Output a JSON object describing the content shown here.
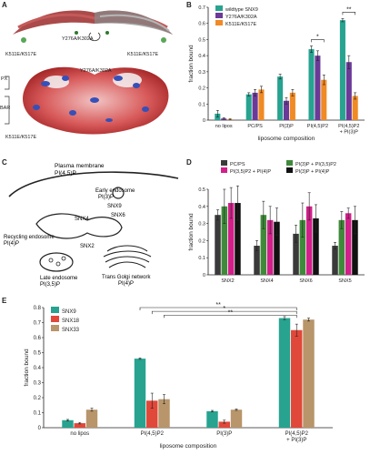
{
  "panel_labels": [
    "A",
    "B",
    "C",
    "D",
    "E"
  ],
  "panel_a": {
    "labels": {
      "y276a": "Y276A/K302A",
      "k511_left": "K511E/K517E",
      "k511_right": "K511E/K517E",
      "y276a_b": "Y276A/K302A",
      "px": "PX",
      "bar": "BAR",
      "k511_b": "K511E/K517E"
    }
  },
  "panel_c": {
    "labels": {
      "pm1": "Plasma membrane",
      "pm2": "PI(4,5)P",
      "ee1": "Early endosome",
      "ee2": "PI(3)P",
      "snx9": "SNX9",
      "snx4": "SNX4",
      "snx6": "SNX6",
      "re1": "Recycling endosome",
      "re2": "PI(4)P",
      "snx2": "SNX2",
      "le1": "Late endosome",
      "le2": "PI(3,5)P",
      "tgn1": "Trans Golgi network",
      "tgn2": "PI(4)P"
    }
  },
  "chart_data": [
    {
      "panel": "B",
      "type": "bar",
      "ylabel": "fraction bound",
      "xlabel": "liposome composition",
      "ylim": [
        0,
        0.7
      ],
      "yticks": [
        "0",
        "0.1",
        "0.2",
        "0.3",
        "0.4",
        "0.5",
        "0.6",
        "0.7"
      ],
      "categories": [
        "no lipos",
        "PC/PS",
        "PI(3)P",
        "PI(4,5)P2",
        "PI(4,5)P2 + PI(3)P"
      ],
      "series": [
        {
          "name": "wildtype SNX9",
          "color": "#27a390",
          "values": [
            0.04,
            0.16,
            0.27,
            0.44,
            0.62
          ],
          "err": [
            0.02,
            0.01,
            0.015,
            0.02,
            0.01
          ]
        },
        {
          "name": "Y276A/K302A",
          "color": "#6b3a98",
          "values": [
            0.01,
            0.17,
            0.12,
            0.4,
            0.36
          ],
          "err": [
            0.005,
            0.02,
            0.02,
            0.03,
            0.04
          ]
        },
        {
          "name": "K511E/K517E",
          "color": "#f08a24",
          "values": [
            0.005,
            0.19,
            0.17,
            0.25,
            0.15
          ],
          "err": [
            0.003,
            0.02,
            0.02,
            0.03,
            0.02
          ]
        }
      ],
      "annotations": [
        "*",
        "**"
      ],
      "legend": "top-left"
    },
    {
      "panel": "D",
      "type": "bar",
      "ylabel": "fraction bound",
      "ylim": [
        0,
        0.5
      ],
      "yticks": [
        "0",
        "0.1",
        "0.2",
        "0.3",
        "0.4",
        "0.5"
      ],
      "categories": [
        "SNX2",
        "SNX4",
        "SNX6",
        "SNX5"
      ],
      "series": [
        {
          "name": "PC/PS",
          "color": "#3a3a3a",
          "values": [
            0.35,
            0.17,
            0.24,
            0.17
          ],
          "err": [
            0.03,
            0.03,
            0.05,
            0.02
          ]
        },
        {
          "name": "PI(3)P + PI(3,5)P2",
          "color": "#3f8a3a",
          "values": [
            0.4,
            0.35,
            0.32,
            0.32
          ],
          "err": [
            0.1,
            0.08,
            0.1,
            0.05
          ]
        },
        {
          "name": "PI(3,5)P2 + PI(4)P",
          "color": "#d21f8a",
          "values": [
            0.42,
            0.32,
            0.4,
            0.36
          ],
          "err": [
            0.09,
            0.08,
            0.08,
            0.03
          ]
        },
        {
          "name": "PI(3)P + PI(4)P",
          "color": "#111111",
          "values": [
            0.42,
            0.31,
            0.33,
            0.32
          ],
          "err": [
            0.1,
            0.08,
            0.08,
            0.08
          ]
        }
      ],
      "legend": "top"
    },
    {
      "panel": "E",
      "type": "bar",
      "ylabel": "fraction bound",
      "xlabel": "liposome composition",
      "ylim": [
        0,
        0.8
      ],
      "yticks": [
        "0",
        "0.1",
        "0.2",
        "0.3",
        "0.4",
        "0.5",
        "0.6",
        "0.7",
        "0.8"
      ],
      "categories": [
        "no lipos",
        "PI(4,5)P2",
        "PI(3)P",
        "PI(4,5)P2 + PI(3)P"
      ],
      "series": [
        {
          "name": "SNX9",
          "color": "#27a390",
          "values": [
            0.05,
            0.46,
            0.11,
            0.73
          ],
          "err": [
            0.005,
            0.005,
            0.005,
            0.01
          ]
        },
        {
          "name": "SNX18",
          "color": "#e0483a",
          "values": [
            0.03,
            0.18,
            0.04,
            0.65
          ],
          "err": [
            0.005,
            0.05,
            0.01,
            0.04
          ]
        },
        {
          "name": "SNX33",
          "color": "#b8956a",
          "values": [
            0.12,
            0.19,
            0.12,
            0.72
          ],
          "err": [
            0.01,
            0.03,
            0.005,
            0.01
          ]
        }
      ],
      "annotations": [
        "**",
        "*",
        "**"
      ],
      "legend": "top-left"
    }
  ]
}
